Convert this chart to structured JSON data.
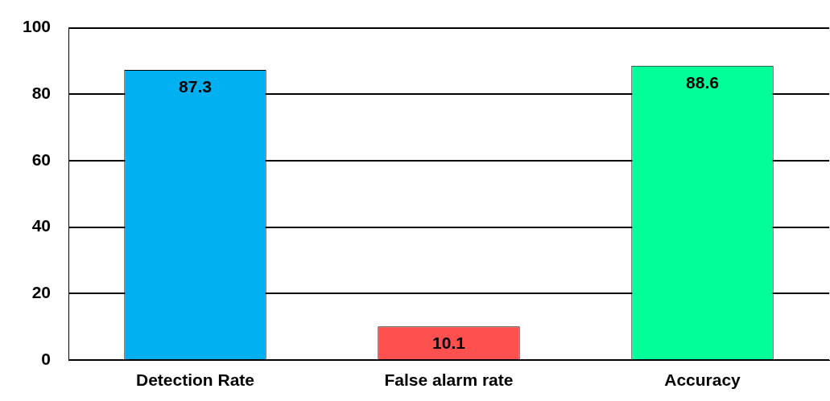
{
  "chart_data": {
    "type": "bar",
    "categories": [
      "Detection Rate",
      "False alarm rate",
      "Accuracy"
    ],
    "values": [
      87.3,
      10.1,
      88.6
    ],
    "colors": [
      "#00b0f0",
      "#ff5050",
      "#00ff99"
    ],
    "ylim": [
      0,
      100
    ],
    "yticks": [
      0,
      20,
      40,
      60,
      80,
      100
    ],
    "grid": "y",
    "data_labels": true,
    "legend": false
  }
}
